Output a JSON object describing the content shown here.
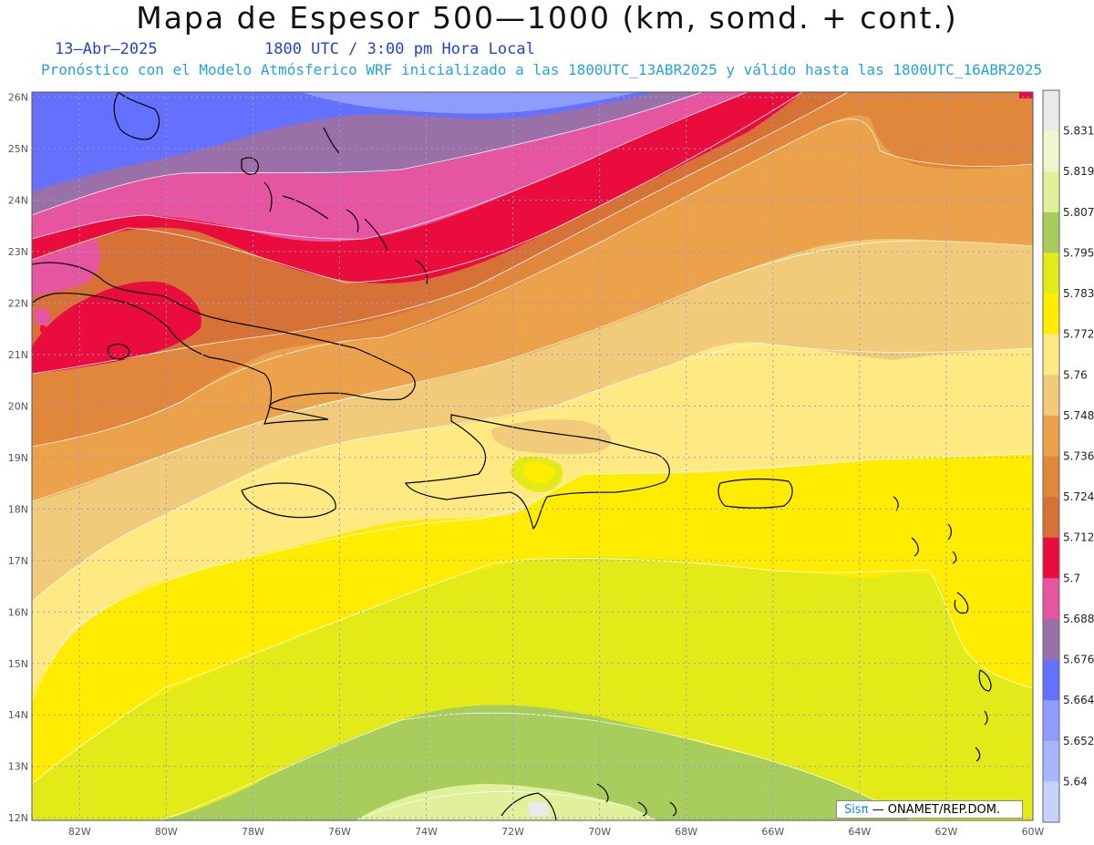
{
  "header": {
    "title": "Mapa de Espesor 500—1000 (km, somd. + cont.)",
    "date": "13—Abr—2025",
    "time": "1800 UTC / 3:00 pm Hora Local",
    "subtitle": "Pronóstico con el Modelo Atmósferico WRF inicializado a las 1800UTC_13ABR2025 y válido hasta las  1800UTC_16ABR2025"
  },
  "axes": {
    "lon_ticks": [
      "82W",
      "80W",
      "78W",
      "76W",
      "74W",
      "72W",
      "70W",
      "68W",
      "66W",
      "64W",
      "62W",
      "60W"
    ],
    "lat_ticks": [
      "26N",
      "25N",
      "24N",
      "23N",
      "22N",
      "21N",
      "20N",
      "19N",
      "18N",
      "17N",
      "16N",
      "15N",
      "14N",
      "13N",
      "12N"
    ]
  },
  "legend": {
    "levels": [
      "5.831",
      "5.819",
      "5.807",
      "5.795",
      "5.783",
      "5.772",
      "5.76",
      "5.748",
      "5.736",
      "5.724",
      "5.712",
      "5.7",
      "5.688",
      "5.676",
      "5.664",
      "5.652",
      "5.64"
    ],
    "colors": [
      "#eaeaea",
      "#f1f7cc",
      "#e1f09a",
      "#a9cd5c",
      "#e2ea17",
      "#ffec00",
      "#ffe983",
      "#f1cb7a",
      "#eca24a",
      "#e0873b",
      "#d67238",
      "#eb0c3e",
      "#e655a0",
      "#9a70a8",
      "#6471ff",
      "#8e9cff",
      "#a8b6ff",
      "#c8d2ff"
    ]
  },
  "credit": {
    "brand": "Sisπ",
    "text": "— ONAMET/REP.DOM."
  }
}
